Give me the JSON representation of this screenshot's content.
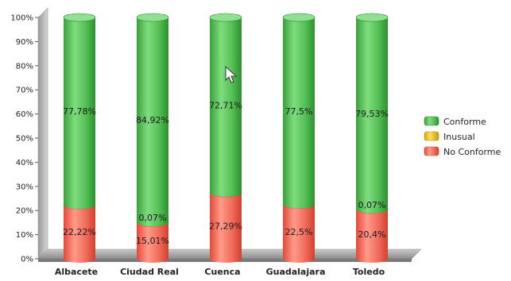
{
  "chart_data": {
    "type": "bar",
    "stacked": true,
    "style": "3d-cylinder",
    "categories": [
      "Albacete",
      "Ciudad Real",
      "Cuenca",
      "Guadalajara",
      "Toledo"
    ],
    "series": [
      {
        "name": "Conforme",
        "color": "#5cc45c",
        "values": [
          77.78,
          84.92,
          72.71,
          77.5,
          79.53
        ],
        "labels": [
          "77,78%",
          "84,92%",
          "72,71%",
          "77,5%",
          "79,53%"
        ]
      },
      {
        "name": "Inusual",
        "color": "#e8c020",
        "values": [
          0,
          0.07,
          0,
          0,
          0.07
        ],
        "labels": [
          "",
          "0,07%",
          "",
          "",
          "0,07%"
        ]
      },
      {
        "name": "No Conforme",
        "color": "#f26b5b",
        "values": [
          22.22,
          15.01,
          27.29,
          22.5,
          20.4
        ],
        "labels": [
          "22,22%",
          "15,01%",
          "27,29%",
          "22,5%",
          "20,4%"
        ]
      }
    ],
    "ylim": [
      0,
      100
    ],
    "yticks": [
      "0%",
      "10%",
      "20%",
      "30%",
      "40%",
      "50%",
      "60%",
      "70%",
      "80%",
      "90%",
      "100%"
    ],
    "title": "",
    "xlabel": "",
    "ylabel": "",
    "legend": "right",
    "grid": false
  }
}
